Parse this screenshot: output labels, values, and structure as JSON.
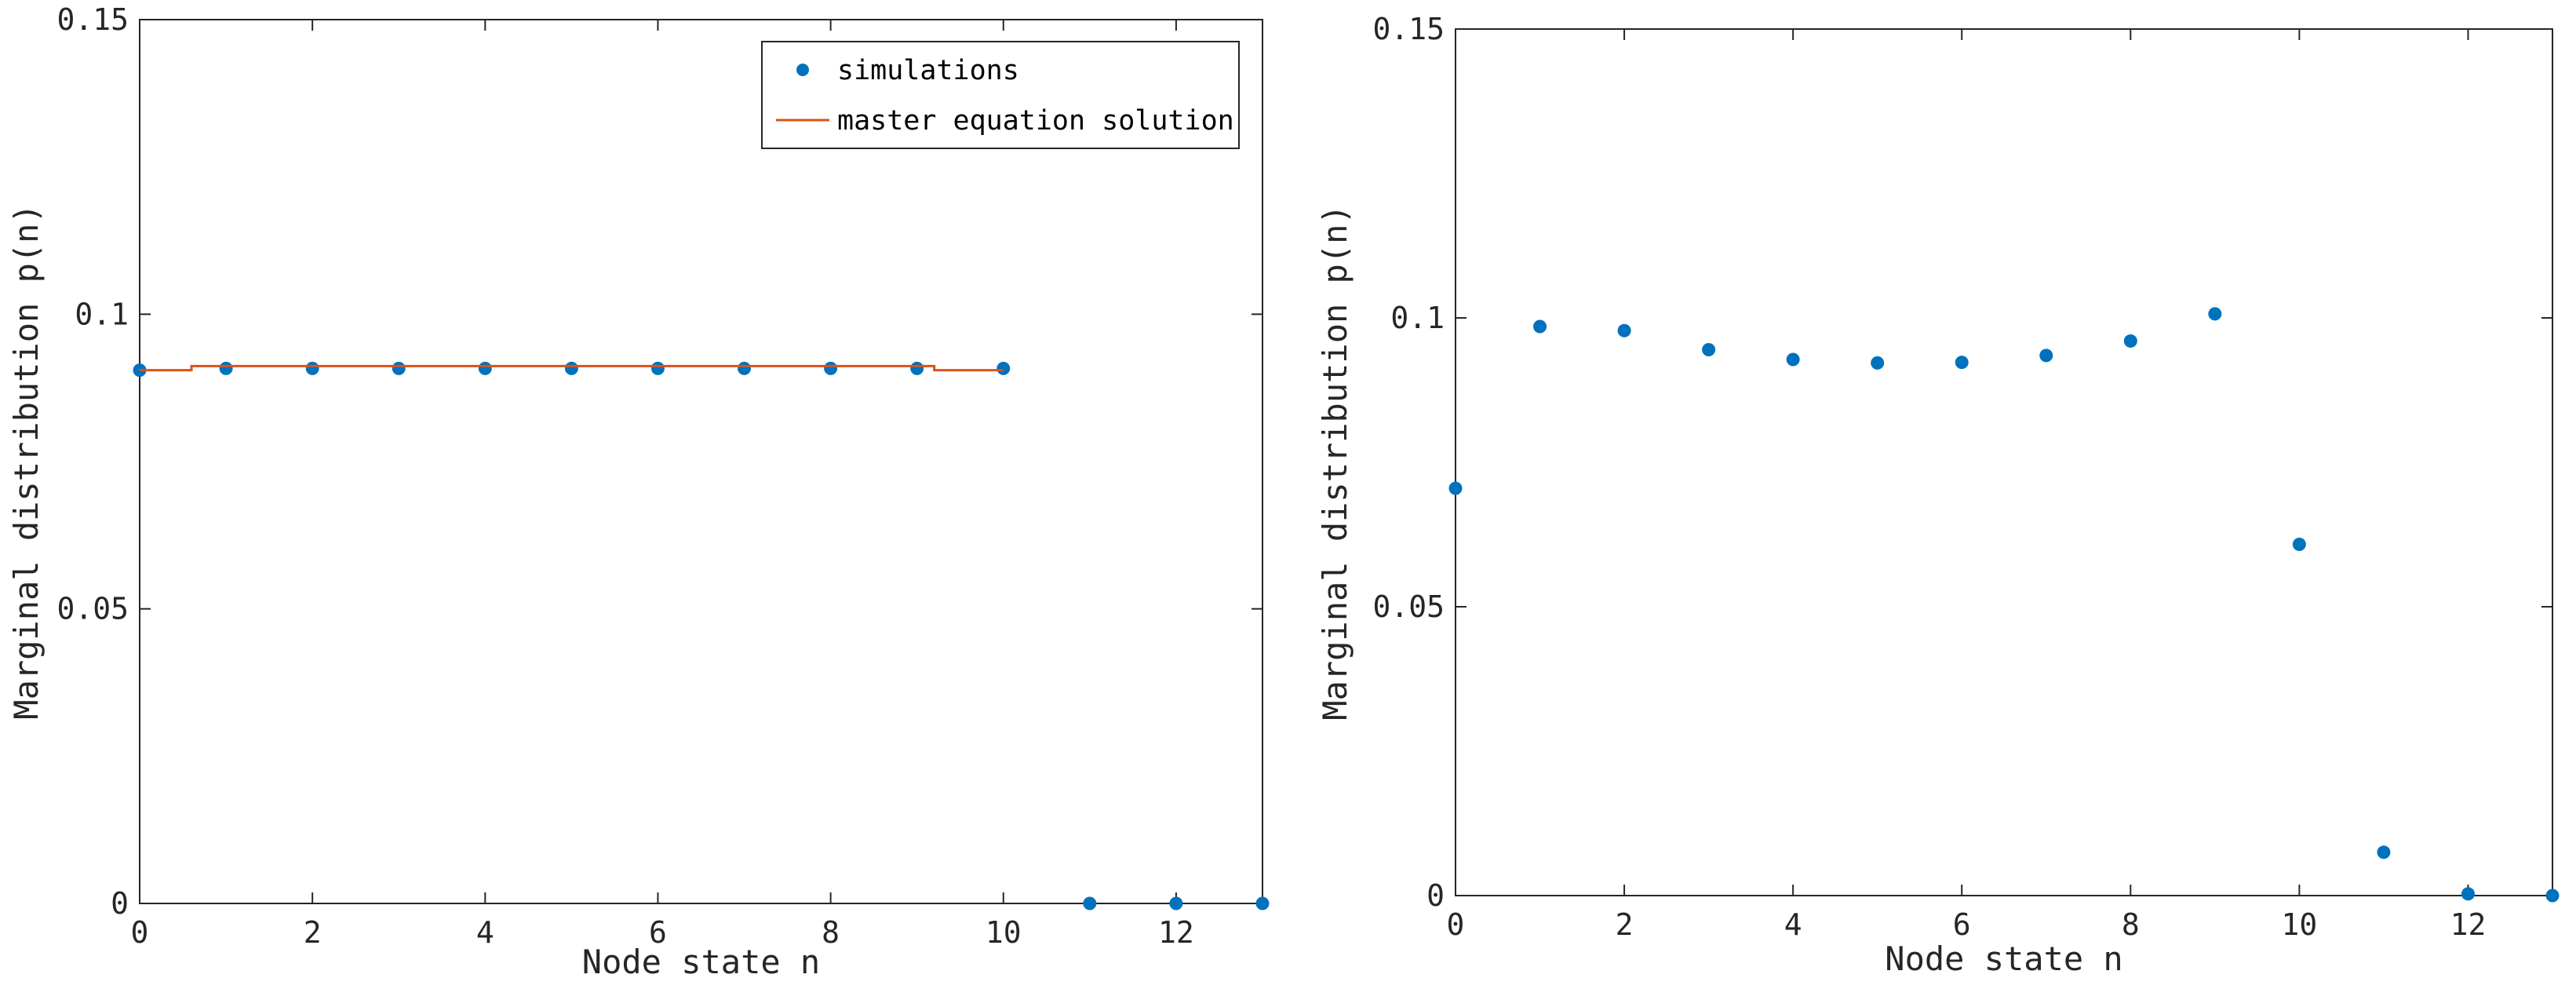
{
  "colors": {
    "simulations": "#0072BD",
    "master_equation": "#D95319",
    "axis": "#262626",
    "background": "#ffffff"
  },
  "chart_data": [
    {
      "type": "scatter",
      "panel": "left",
      "xlabel": "Node state n",
      "ylabel": "Marginal distribution p(n)",
      "xlim": [
        0,
        13
      ],
      "ylim": [
        0,
        0.15
      ],
      "xticks": [
        0,
        2,
        4,
        6,
        8,
        10,
        12
      ],
      "xtick_labels": [
        "0",
        "2",
        "4",
        "6",
        "8",
        "10",
        "12"
      ],
      "yticks": [
        0,
        0.05,
        0.1,
        0.15
      ],
      "ytick_labels": [
        "0",
        "0.05",
        "0.1",
        "0.15"
      ],
      "legend": {
        "placement": "top-right",
        "entries": [
          {
            "label": "simulations",
            "style": "marker"
          },
          {
            "label": "master equation solution",
            "style": "line"
          }
        ]
      },
      "series": [
        {
          "name": "simulations",
          "style": "marker",
          "x": [
            0,
            1,
            2,
            3,
            4,
            5,
            6,
            7,
            8,
            9,
            10,
            11,
            12,
            13
          ],
          "values": [
            0.0905,
            0.0908,
            0.0908,
            0.0908,
            0.0908,
            0.0908,
            0.0908,
            0.0908,
            0.0908,
            0.0908,
            0.0908,
            0.0,
            0.0,
            0.0
          ]
        },
        {
          "name": "master equation solution",
          "style": "stairs",
          "x": [
            0,
            0.6,
            9.2,
            10
          ],
          "values": [
            0.0905,
            0.0912,
            0.0905,
            0.0905
          ]
        }
      ]
    },
    {
      "type": "scatter",
      "panel": "right",
      "xlabel": "Node state n",
      "ylabel": "Marginal distribution p(n)",
      "xlim": [
        0,
        13
      ],
      "ylim": [
        0,
        0.15
      ],
      "xticks": [
        0,
        2,
        4,
        6,
        8,
        10,
        12
      ],
      "xtick_labels": [
        "0",
        "2",
        "4",
        "6",
        "8",
        "10",
        "12"
      ],
      "yticks": [
        0,
        0.05,
        0.1,
        0.15
      ],
      "ytick_labels": [
        "0",
        "0.05",
        "0.1",
        "0.15"
      ],
      "series": [
        {
          "name": "simulations",
          "style": "marker",
          "x": [
            0,
            1,
            2,
            3,
            4,
            5,
            6,
            7,
            8,
            9,
            10,
            11,
            12,
            13
          ],
          "values": [
            0.0705,
            0.0985,
            0.0978,
            0.0945,
            0.0928,
            0.0922,
            0.0923,
            0.0935,
            0.096,
            0.1007,
            0.0608,
            0.0075,
            0.0003,
            0.0
          ]
        }
      ]
    }
  ]
}
